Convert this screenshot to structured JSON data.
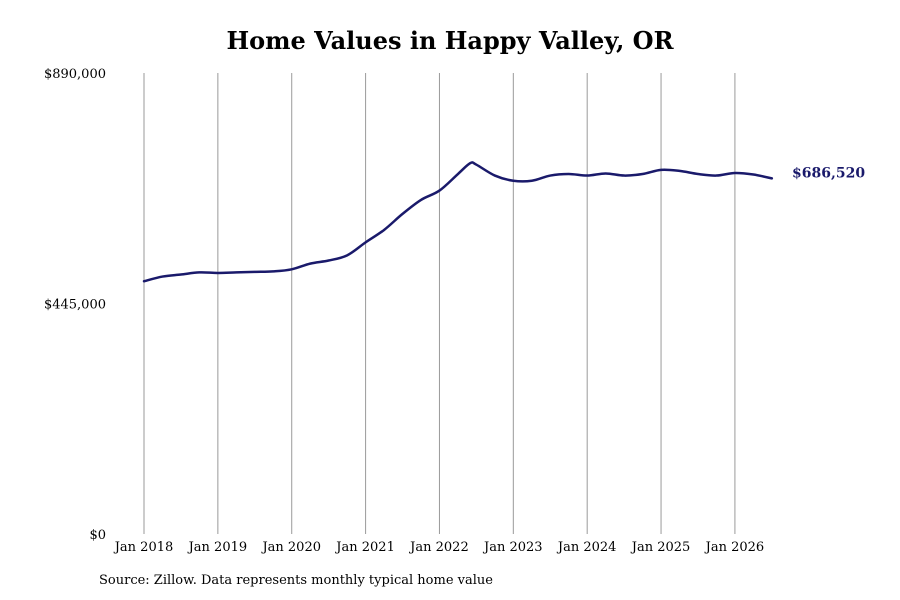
{
  "chart_data": {
    "type": "line",
    "title": "Home Values in Happy Valley, OR",
    "xlabel": "",
    "ylabel": "",
    "ylim": [
      0,
      890000
    ],
    "xlim": [
      "2018-01",
      "2026-08"
    ],
    "yticks": [
      {
        "value": 0,
        "label": "$0"
      },
      {
        "value": 445000,
        "label": "$445,000"
      },
      {
        "value": 890000,
        "label": "$890,000"
      }
    ],
    "xticks": [
      {
        "value": "2018-01",
        "label": "Jan 2018"
      },
      {
        "value": "2019-01",
        "label": "Jan 2019"
      },
      {
        "value": "2020-01",
        "label": "Jan 2020"
      },
      {
        "value": "2021-01",
        "label": "Jan 2021"
      },
      {
        "value": "2022-01",
        "label": "Jan 2022"
      },
      {
        "value": "2023-01",
        "label": "Jan 2023"
      },
      {
        "value": "2024-01",
        "label": "Jan 2024"
      },
      {
        "value": "2025-01",
        "label": "Jan 2025"
      },
      {
        "value": "2026-01",
        "label": "Jan 2026"
      }
    ],
    "grid": "vertical",
    "series": [
      {
        "color": "#1a1a6b",
        "end_label": "$686,520",
        "x": [
          "2018-01",
          "2018-04",
          "2018-07",
          "2018-10",
          "2019-01",
          "2019-04",
          "2019-07",
          "2019-10",
          "2020-01",
          "2020-04",
          "2020-07",
          "2020-10",
          "2021-01",
          "2021-04",
          "2021-07",
          "2021-10",
          "2022-01",
          "2022-04",
          "2022-06",
          "2022-07",
          "2022-10",
          "2023-01",
          "2023-04",
          "2023-07",
          "2023-10",
          "2024-01",
          "2024-04",
          "2024-07",
          "2024-10",
          "2025-01",
          "2025-04",
          "2025-07",
          "2025-10",
          "2026-01",
          "2026-04",
          "2026-07"
        ],
        "y": [
          488000,
          497000,
          501000,
          505000,
          504000,
          505000,
          506000,
          507000,
          511000,
          522000,
          528000,
          538000,
          563000,
          587000,
          618000,
          645000,
          663000,
          695000,
          716000,
          713000,
          692000,
          682000,
          682000,
          692000,
          695000,
          692000,
          696000,
          692000,
          695000,
          703000,
          701000,
          695000,
          692000,
          697000,
          694000,
          686520
        ]
      }
    ]
  },
  "source_note": "Source: Zillow. Data represents monthly typical home value"
}
